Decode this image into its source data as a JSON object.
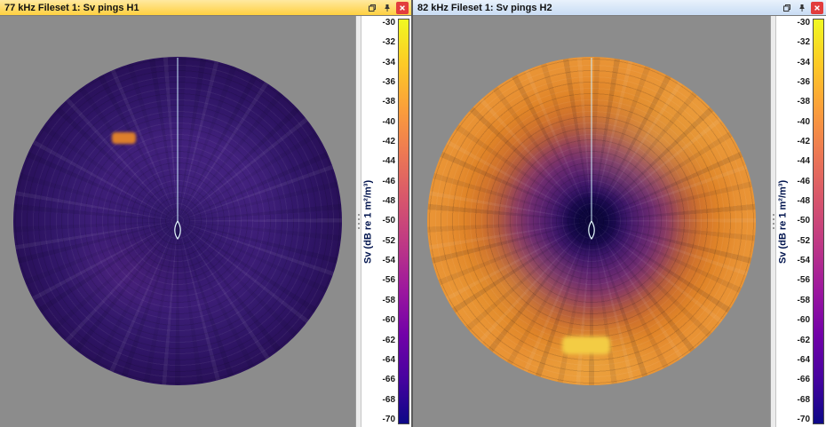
{
  "panels": [
    {
      "title": "77 kHz Fileset 1: Sv pings H1",
      "active": true,
      "scale": {
        "label": "Sv (dB re 1 m²/m³)",
        "ticks": [
          "-30",
          "-32",
          "-34",
          "-36",
          "-38",
          "-40",
          "-42",
          "-44",
          "-46",
          "-48",
          "-50",
          "-52",
          "-54",
          "-56",
          "-58",
          "-60",
          "-62",
          "-64",
          "-66",
          "-68",
          "-70"
        ]
      }
    },
    {
      "title": "82 kHz Fileset 1: Sv pings H2",
      "active": false,
      "scale": {
        "label": "Sv (dB re 1 m²/m³)",
        "ticks": [
          "-30",
          "-32",
          "-34",
          "-36",
          "-38",
          "-40",
          "-42",
          "-44",
          "-46",
          "-48",
          "-50",
          "-52",
          "-54",
          "-56",
          "-58",
          "-60",
          "-62",
          "-64",
          "-66",
          "-68",
          "-70"
        ]
      }
    }
  ],
  "colors": {
    "titlebar_active": "#ffd040",
    "titlebar_inactive": "#c8dcf4",
    "close_button": "#e23d3d",
    "background_gray": "#8c8c8c",
    "colorbar_top": "#f0f921",
    "colorbar_bottom": "#0d0887",
    "heading_line": "#cdeffd"
  }
}
